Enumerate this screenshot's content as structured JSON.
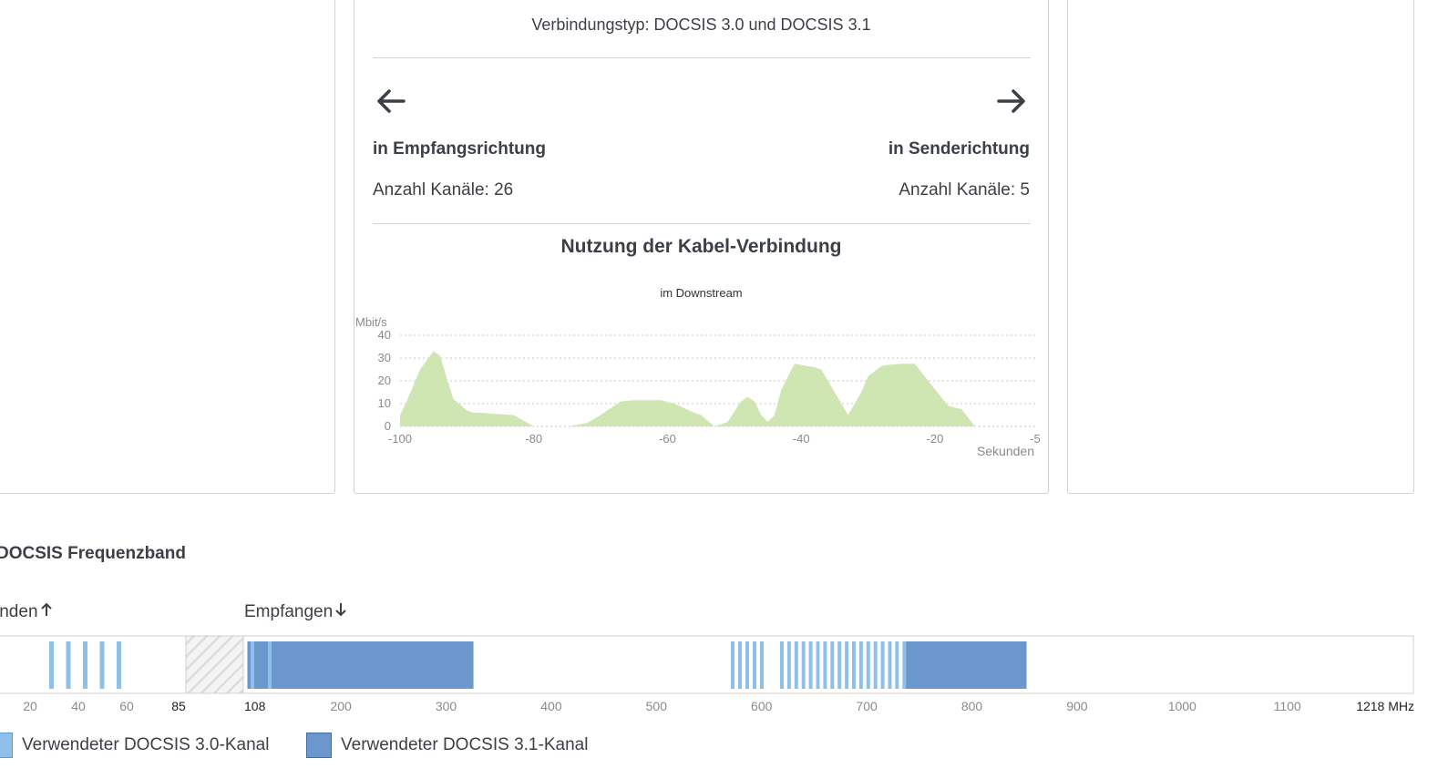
{
  "connection": {
    "type_text": "Verbindungstyp: DOCSIS 3.0 und DOCSIS 3.1"
  },
  "downstream": {
    "title": "in Empfangsrichtung",
    "channels_text": "Anzahl Kanäle: 26",
    "icon": "arrow-left-icon"
  },
  "upstream": {
    "title": "in Senderichtung",
    "channels_text": "Anzahl Kanäle: 5",
    "icon": "arrow-right-icon"
  },
  "usage": {
    "title": "Nutzung der Kabel-Verbindung",
    "subtitle": "im Downstream"
  },
  "chart_data": {
    "type": "area",
    "ylabel": "Mbit/s",
    "xlabel": "Sekunden",
    "ylim": [
      0,
      40
    ],
    "xlim": [
      -100,
      -5
    ],
    "yticks": [
      "0",
      "10",
      "20",
      "30",
      "40"
    ],
    "xticks": [
      "-100",
      "-80",
      "-60",
      "-40",
      "-20",
      "-5"
    ],
    "grid": "horizontal dotted",
    "fill_color": "#cfe6b3",
    "x": [
      -100,
      -99,
      -97,
      -95,
      -94,
      -93,
      -92,
      -90,
      -89,
      -88,
      -86,
      -83,
      -80,
      -75,
      -72,
      -70,
      -67,
      -65,
      -61,
      -59,
      -56,
      -55,
      -53,
      -51,
      -49,
      -48,
      -47,
      -46,
      -45,
      -44,
      -43,
      -41,
      -40,
      -38,
      -37,
      -36,
      -35,
      -33,
      -31,
      -30,
      -28,
      -27,
      -25,
      -23,
      -21,
      -18,
      -16,
      -14,
      -13,
      -11,
      -9,
      -7,
      -5
    ],
    "values": [
      5,
      11,
      25,
      33,
      31,
      21,
      12,
      7,
      6,
      6,
      5.5,
      5,
      0,
      0,
      1.5,
      5,
      11,
      11.5,
      11.5,
      10,
      6,
      5,
      0,
      2,
      11,
      13,
      11,
      5,
      2,
      5,
      16,
      27.5,
      27,
      26,
      25,
      20,
      15,
      5,
      15,
      22,
      26.5,
      27,
      27.5,
      27.5,
      20,
      9,
      7.5,
      0,
      0,
      0,
      0,
      0,
      0
    ]
  },
  "frequency_band": {
    "title": "DOCSIS Frequenzband",
    "send_label": "Senden",
    "receive_label": "Empfangen",
    "send_icon": "arrow-up-icon",
    "receive_icon": "arrow-down-icon",
    "unit": "MHz",
    "ticks_upstream": [
      "20",
      "40",
      "60",
      "85"
    ],
    "ticks_downstream": [
      "108",
      "200",
      "300",
      "400",
      "500",
      "600",
      "700",
      "800",
      "900",
      "1000",
      "1100",
      "1218 MHz"
    ],
    "docsis30_upstream_channels": 5,
    "docsis30_downstream_channels": 24,
    "docsis31_downstream_ranges_mhz": [
      [
        111,
        326
      ],
      [
        736,
        852
      ]
    ],
    "gap_range_mhz": [
      85,
      108
    ]
  },
  "legend": {
    "docsis30": "Verwendeter DOCSIS 3.0-Kanal",
    "docsis31": "Verwendeter DOCSIS 3.1-Kanal",
    "color_docsis30": "#8ec0ea",
    "color_docsis31": "#6b97cc"
  }
}
